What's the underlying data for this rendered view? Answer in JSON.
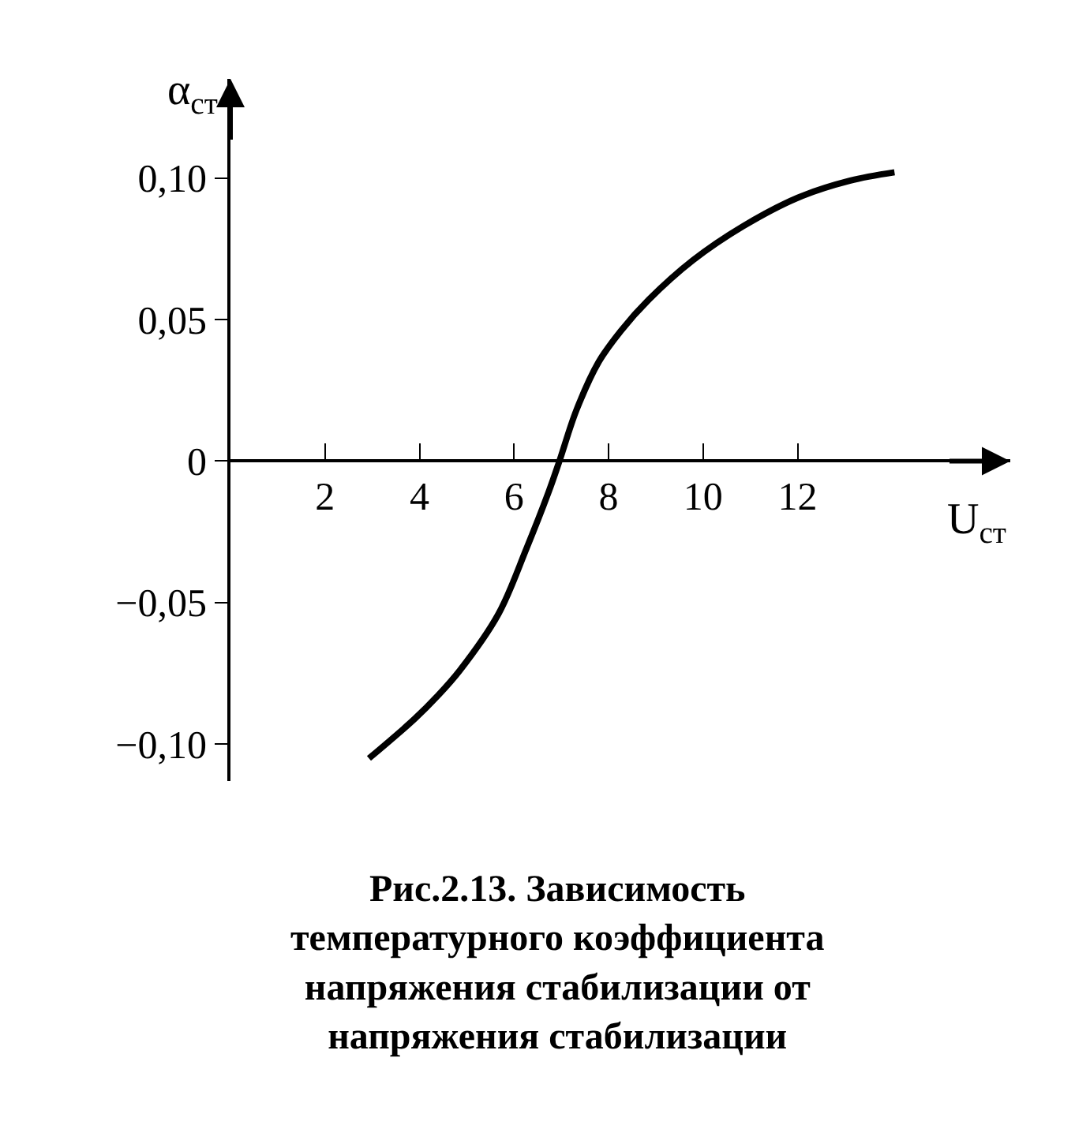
{
  "chart_data": {
    "type": "line",
    "title": "Рис.2.13. Зависимость температурного коэффициента напряжения стабилизации от напряжения стабилизации",
    "xlabel": "U$_{ст}$",
    "ylabel": "α$_{ст}$",
    "x": [
      2.93,
      3.9,
      4.38,
      4.85,
      5.67,
      6.26,
      6.73,
      6.96,
      7.32,
      7.79,
      8.26,
      8.85,
      9.79,
      10.85,
      12.0,
      13.1,
      14.05
    ],
    "series": [
      {
        "color": "#000000",
        "values": [
          -0.105,
          -0.091,
          -0.083,
          -0.074,
          -0.054,
          -0.031,
          -0.011,
          0.0,
          0.018,
          0.035,
          0.046,
          0.057,
          0.071,
          0.083,
          0.093,
          0.099,
          0.102
        ]
      }
    ],
    "xlim": [
      0,
      16.5
    ],
    "ylim": [
      -0.113,
      0.135
    ],
    "xticks": [
      2,
      4,
      6,
      8,
      10,
      12
    ],
    "yticks": [
      {
        "value": -0.1,
        "label": "−0,10"
      },
      {
        "value": -0.05,
        "label": "−0,05"
      },
      {
        "value": 0,
        "label": "0"
      },
      {
        "value": 0.05,
        "label": "0,05"
      },
      {
        "value": 0.1,
        "label": "0,10"
      }
    ],
    "legend": false,
    "marker": "none",
    "line_style": "solid"
  }
}
